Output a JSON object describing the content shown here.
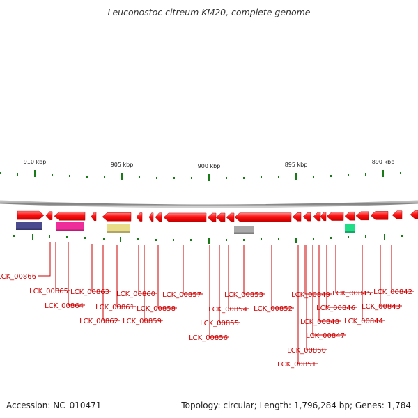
{
  "title": "Leuconostoc citreum KM20, complete genome",
  "footer": {
    "accession": "Accession: NC_010471",
    "summary": "Topology: circular; Length: 1,796,284 bp; Genes: 1,784"
  },
  "colors": {
    "gene_arrow": "#ff0000",
    "backbone": "#888888",
    "tick": "#1a7a1a",
    "label": "#cc0000"
  },
  "scale": {
    "unit": "kbp",
    "labels": [
      "910 kbp",
      "905 kbp",
      "900 kbp",
      "895 kbp",
      "890 kbp"
    ]
  },
  "genes": [
    "LCK_00866",
    "LCK_00865",
    "LCK_00864",
    "LCK_00863",
    "LCK_00862",
    "LCK_00861",
    "LCK_00860",
    "LCK_00859",
    "LCK_00858",
    "LCK_00857",
    "LCK_00856",
    "LCK_00855",
    "LCK_00854",
    "LCK_00853",
    "LCK_00852",
    "LCK_00851",
    "LCK_00850",
    "LCK_00849",
    "LCK_00848",
    "LCK_00847",
    "LCK_00846",
    "LCK_00845",
    "LCK_00844",
    "LCK_00843",
    "LCK_00842"
  ],
  "features": [
    {
      "name": "feature-block-1",
      "color": "#4a4a8f"
    },
    {
      "name": "feature-block-2",
      "color": "#ee2c9a"
    },
    {
      "name": "feature-block-3",
      "color": "#e8dc88"
    },
    {
      "name": "feature-block-4",
      "color": "#a8a8a8"
    },
    {
      "name": "feature-block-5",
      "color": "#22dd88"
    }
  ]
}
